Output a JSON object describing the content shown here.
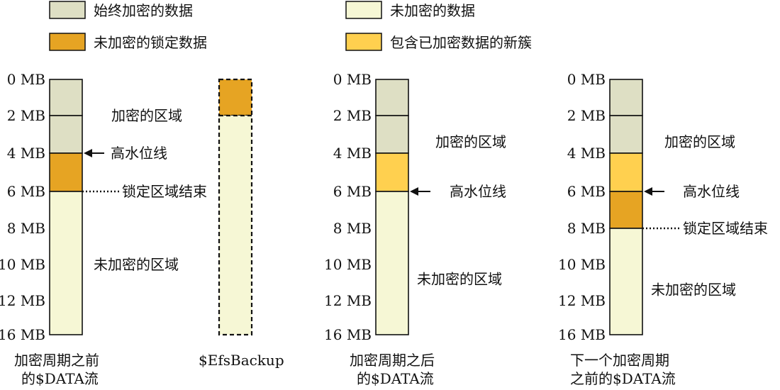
{
  "colors": {
    "always_encrypted": "#DEDFC4",
    "unencrypted": "#F6F7D5",
    "locked_unencrypted": "#E6A423",
    "new_cluster": "#FFD04F",
    "outline": "#111111"
  },
  "legend": [
    {
      "label": "始终加密的数据",
      "color": "always_encrypted"
    },
    {
      "label": "未加密的数据",
      "color": "unencrypted"
    },
    {
      "label": "未加密的锁定数据",
      "color": "locked_unencrypted"
    },
    {
      "label": "包含已加密数据的新簇",
      "color": "new_cluster"
    }
  ],
  "tick_labels": [
    "0 MB",
    "2 MB",
    "4 MB",
    "6 MB",
    "8 MB",
    "10 MB",
    "12 MB",
    "16 MB"
  ],
  "columns": [
    {
      "caption_line1": "加密周期之前",
      "caption_line2": "的$DATA流",
      "show_ticks": true,
      "segments": [
        {
          "from_tick": 0,
          "to_tick": 1,
          "color": "always_encrypted"
        },
        {
          "from_tick": 1,
          "to_tick": 2,
          "color": "always_encrypted"
        },
        {
          "from_tick": 2,
          "to_tick": 3,
          "color": "locked_unencrypted"
        },
        {
          "from_tick": 3,
          "to_tick": 7,
          "color": "unencrypted"
        }
      ],
      "region_labels": [
        {
          "text": "加密的区域",
          "tick": 1
        },
        {
          "text": "未加密的区域",
          "tick": 5
        }
      ],
      "markers": [
        {
          "text": "高水位线",
          "tick": 2,
          "style": "arrow"
        },
        {
          "text": "锁定区域结束",
          "tick": 3,
          "style": "dotted"
        }
      ]
    },
    {
      "caption_line1": "$EfsBackup",
      "caption_line2": "",
      "show_ticks": false,
      "dashed": true,
      "segments": [
        {
          "from_tick": 0,
          "to_tick": 1,
          "color": "locked_unencrypted"
        },
        {
          "from_tick": 1,
          "to_tick": 7,
          "color": "unencrypted"
        }
      ],
      "region_labels": [],
      "markers": []
    },
    {
      "caption_line1": "加密周期之后",
      "caption_line2": "的$DATA流",
      "show_ticks": true,
      "segments": [
        {
          "from_tick": 0,
          "to_tick": 1,
          "color": "always_encrypted"
        },
        {
          "from_tick": 1,
          "to_tick": 2,
          "color": "always_encrypted"
        },
        {
          "from_tick": 2,
          "to_tick": 3,
          "color": "new_cluster"
        },
        {
          "from_tick": 3,
          "to_tick": 7,
          "color": "unencrypted"
        }
      ],
      "region_labels": [
        {
          "text": "加密的区域",
          "tick": 1.7
        },
        {
          "text": "未加密的区域",
          "tick": 5.4
        }
      ],
      "markers": [
        {
          "text": "高水位线",
          "tick": 3,
          "style": "arrow"
        }
      ]
    },
    {
      "caption_line1": "下一个加密周期",
      "caption_line2": "之前的$DATA流",
      "show_ticks": true,
      "segments": [
        {
          "from_tick": 0,
          "to_tick": 1,
          "color": "always_encrypted"
        },
        {
          "from_tick": 1,
          "to_tick": 2,
          "color": "always_encrypted"
        },
        {
          "from_tick": 2,
          "to_tick": 3,
          "color": "new_cluster"
        },
        {
          "from_tick": 3,
          "to_tick": 4,
          "color": "locked_unencrypted"
        },
        {
          "from_tick": 4,
          "to_tick": 7,
          "color": "unencrypted"
        }
      ],
      "region_labels": [
        {
          "text": "加密的区域",
          "tick": 1.7
        },
        {
          "text": "未加密的区域",
          "tick": 5.7
        }
      ],
      "markers": [
        {
          "text": "高水位线",
          "tick": 3,
          "style": "arrow"
        },
        {
          "text": "锁定区域结束",
          "tick": 4,
          "style": "dotted"
        }
      ]
    }
  ]
}
